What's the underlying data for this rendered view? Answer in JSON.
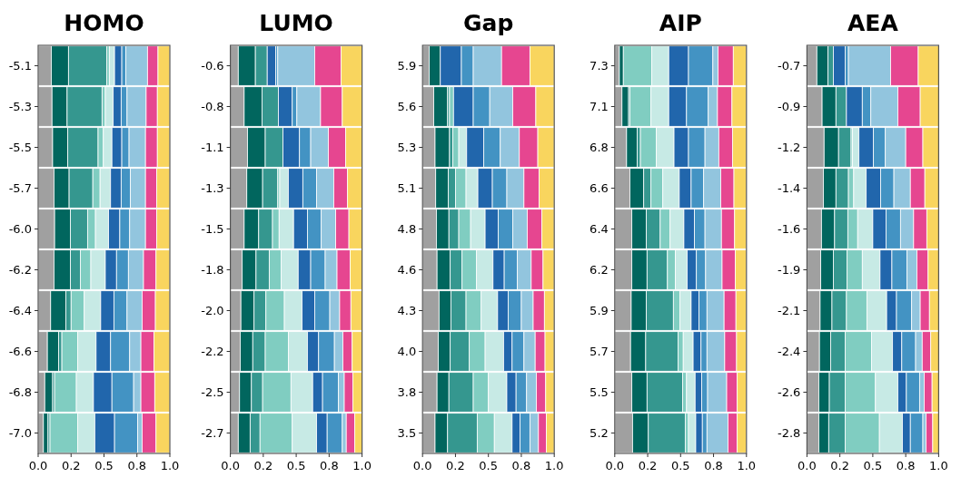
{
  "chart_data": [
    {
      "type": "bar",
      "orientation": "horizontal",
      "stacked": true,
      "title": "HOMO",
      "categories": [
        "-5.1",
        "-5.3",
        "-5.5",
        "-5.7",
        "-6.0",
        "-6.2",
        "-6.4",
        "-6.6",
        "-6.8",
        "-7.0"
      ],
      "xlim": [
        0,
        1
      ],
      "xticks": [
        {
          "value": 0,
          "label": "0.0"
        },
        {
          "value": 0.25,
          "label": "0.2"
        },
        {
          "value": 0.5,
          "label": "0.5"
        },
        {
          "value": 0.75,
          "label": "0.8"
        },
        {
          "value": 1,
          "label": "1.0"
        }
      ],
      "series": [
        {
          "color": "#a0a0a0",
          "values": [
            0.1,
            0.105,
            0.11,
            0.12,
            0.125,
            0.12,
            0.095,
            0.07,
            0.05,
            0.04
          ]
        },
        {
          "color": "#01665e",
          "values": [
            0.13,
            0.115,
            0.115,
            0.115,
            0.12,
            0.125,
            0.115,
            0.085,
            0.06,
            0.035
          ]
        },
        {
          "color": "#35978f",
          "values": [
            0.29,
            0.265,
            0.23,
            0.18,
            0.13,
            0.075,
            0.04,
            0.025,
            0.015,
            0.015
          ]
        },
        {
          "color": "#80cdc1",
          "values": [
            0.02,
            0.025,
            0.04,
            0.055,
            0.06,
            0.08,
            0.1,
            0.12,
            0.165,
            0.21
          ]
        },
        {
          "color": "#c7eae5",
          "values": [
            0.04,
            0.06,
            0.065,
            0.08,
            0.1,
            0.11,
            0.125,
            0.14,
            0.13,
            0.13
          ]
        },
        {
          "color": "#2166ac",
          "values": [
            0.055,
            0.06,
            0.075,
            0.08,
            0.085,
            0.085,
            0.1,
            0.11,
            0.14,
            0.15
          ]
        },
        {
          "color": "#4393c3",
          "values": [
            0.03,
            0.045,
            0.055,
            0.07,
            0.075,
            0.09,
            0.1,
            0.145,
            0.165,
            0.175
          ]
        },
        {
          "color": "#92c5de",
          "values": [
            0.165,
            0.145,
            0.125,
            0.115,
            0.12,
            0.115,
            0.115,
            0.085,
            0.055,
            0.035
          ]
        },
        {
          "color": "#e64690",
          "values": [
            0.08,
            0.085,
            0.09,
            0.085,
            0.085,
            0.095,
            0.1,
            0.1,
            0.105,
            0.105
          ]
        },
        {
          "color": "#f9d55e",
          "values": [
            0.09,
            0.095,
            0.095,
            0.1,
            0.1,
            0.105,
            0.11,
            0.12,
            0.115,
            0.105
          ]
        }
      ]
    },
    {
      "type": "bar",
      "orientation": "horizontal",
      "stacked": true,
      "title": "LUMO",
      "categories": [
        "-0.6",
        "-0.8",
        "-1.1",
        "-1.3",
        "-1.5",
        "-1.8",
        "-2.0",
        "-2.2",
        "-2.5",
        "-2.7"
      ],
      "xlim": [
        0,
        1
      ],
      "xticks": [
        {
          "value": 0,
          "label": "0.0"
        },
        {
          "value": 0.25,
          "label": "0.2"
        },
        {
          "value": 0.5,
          "label": "0.5"
        },
        {
          "value": 0.75,
          "label": "0.8"
        },
        {
          "value": 1,
          "label": "1.0"
        }
      ],
      "series": [
        {
          "color": "#a0a0a0",
          "values": [
            0.06,
            0.105,
            0.13,
            0.125,
            0.105,
            0.09,
            0.08,
            0.075,
            0.07,
            0.06
          ]
        },
        {
          "color": "#01665e",
          "values": [
            0.13,
            0.135,
            0.135,
            0.12,
            0.11,
            0.105,
            0.1,
            0.095,
            0.09,
            0.09
          ]
        },
        {
          "color": "#35978f",
          "values": [
            0.09,
            0.125,
            0.135,
            0.115,
            0.105,
            0.1,
            0.09,
            0.095,
            0.085,
            0.075
          ]
        },
        {
          "color": "#80cdc1",
          "values": [
            0,
            0,
            0,
            0.015,
            0.05,
            0.09,
            0.14,
            0.175,
            0.215,
            0.245
          ]
        },
        {
          "color": "#c7eae5",
          "values": [
            0,
            0,
            0,
            0.065,
            0.11,
            0.13,
            0.135,
            0.145,
            0.165,
            0.185
          ]
        },
        {
          "color": "#2166ac",
          "values": [
            0.065,
            0.105,
            0.125,
            0.11,
            0.105,
            0.095,
            0.095,
            0.085,
            0.075,
            0.08
          ]
        },
        {
          "color": "#4393c3",
          "values": [
            0.015,
            0.035,
            0.085,
            0.105,
            0.105,
            0.11,
            0.115,
            0.12,
            0.12,
            0.115
          ]
        },
        {
          "color": "#92c5de",
          "values": [
            0.28,
            0.18,
            0.135,
            0.13,
            0.11,
            0.09,
            0.075,
            0.065,
            0.045,
            0.03
          ]
        },
        {
          "color": "#e64690",
          "values": [
            0.2,
            0.165,
            0.13,
            0.105,
            0.1,
            0.1,
            0.085,
            0.07,
            0.065,
            0.065
          ]
        },
        {
          "color": "#f9d55e",
          "values": [
            0.16,
            0.15,
            0.125,
            0.11,
            0.1,
            0.09,
            0.085,
            0.075,
            0.07,
            0.055
          ]
        }
      ]
    },
    {
      "type": "bar",
      "orientation": "horizontal",
      "stacked": true,
      "title": "Gap",
      "categories": [
        "5.9",
        "5.6",
        "5.3",
        "5.1",
        "4.8",
        "4.6",
        "4.3",
        "4.0",
        "3.8",
        "3.5"
      ],
      "xlim": [
        0,
        1
      ],
      "xticks": [
        {
          "value": 0,
          "label": "0.0"
        },
        {
          "value": 0.25,
          "label": "0.2"
        },
        {
          "value": 0.5,
          "label": "0.5"
        },
        {
          "value": 0.75,
          "label": "0.8"
        },
        {
          "value": 1,
          "label": "1.0"
        }
      ],
      "series": [
        {
          "color": "#a0a0a0",
          "values": [
            0.05,
            0.085,
            0.095,
            0.1,
            0.105,
            0.11,
            0.125,
            0.12,
            0.11,
            0.095
          ]
        },
        {
          "color": "#01665e",
          "values": [
            0.085,
            0.105,
            0.11,
            0.095,
            0.095,
            0.1,
            0.09,
            0.09,
            0.09,
            0.095
          ]
        },
        {
          "color": "#35978f",
          "values": [
            0,
            0.015,
            0.025,
            0.055,
            0.075,
            0.09,
            0.115,
            0.145,
            0.185,
            0.225
          ]
        },
        {
          "color": "#80cdc1",
          "values": [
            0,
            0.03,
            0.045,
            0.08,
            0.09,
            0.11,
            0.115,
            0.12,
            0.115,
            0.13
          ]
        },
        {
          "color": "#c7eae5",
          "values": [
            0,
            0,
            0.06,
            0.09,
            0.11,
            0.125,
            0.125,
            0.14,
            0.14,
            0.135
          ]
        },
        {
          "color": "#2166ac",
          "values": [
            0.16,
            0.15,
            0.13,
            0.11,
            0.1,
            0.085,
            0.08,
            0.065,
            0.07,
            0.06
          ]
        },
        {
          "color": "#4393c3",
          "values": [
            0.09,
            0.125,
            0.125,
            0.11,
            0.11,
            0.1,
            0.1,
            0.09,
            0.08,
            0.075
          ]
        },
        {
          "color": "#92c5de",
          "values": [
            0.215,
            0.175,
            0.145,
            0.13,
            0.11,
            0.105,
            0.09,
            0.085,
            0.075,
            0.065
          ]
        },
        {
          "color": "#e64690",
          "values": [
            0.215,
            0.175,
            0.14,
            0.115,
            0.11,
            0.09,
            0.085,
            0.075,
            0.07,
            0.06
          ]
        },
        {
          "color": "#f9d55e",
          "values": [
            0.185,
            0.14,
            0.125,
            0.115,
            0.095,
            0.085,
            0.075,
            0.07,
            0.065,
            0.06
          ]
        }
      ]
    },
    {
      "type": "bar",
      "orientation": "horizontal",
      "stacked": true,
      "title": "AIP",
      "categories": [
        "7.3",
        "7.1",
        "6.8",
        "6.6",
        "6.4",
        "6.2",
        "5.9",
        "5.7",
        "5.5",
        "5.2"
      ],
      "xlim": [
        0,
        1
      ],
      "xticks": [
        {
          "value": 0,
          "label": "0.0"
        },
        {
          "value": 0.25,
          "label": "0.2"
        },
        {
          "value": 0.5,
          "label": "0.5"
        },
        {
          "value": 0.75,
          "label": "0.8"
        },
        {
          "value": 1,
          "label": "1.0"
        }
      ],
      "series": [
        {
          "color": "#a0a0a0",
          "values": [
            0.035,
            0.055,
            0.09,
            0.115,
            0.13,
            0.13,
            0.125,
            0.12,
            0.13,
            0.135
          ]
        },
        {
          "color": "#01665e",
          "values": [
            0.03,
            0.05,
            0.08,
            0.105,
            0.11,
            0.115,
            0.115,
            0.115,
            0.115,
            0.12
          ]
        },
        {
          "color": "#35978f",
          "values": [
            0,
            0.01,
            0.025,
            0.055,
            0.105,
            0.155,
            0.205,
            0.245,
            0.27,
            0.28
          ]
        },
        {
          "color": "#80cdc1",
          "values": [
            0.215,
            0.16,
            0.12,
            0.09,
            0.075,
            0.06,
            0.05,
            0.04,
            0.03,
            0.025
          ]
        },
        {
          "color": "#c7eae5",
          "values": [
            0.13,
            0.135,
            0.135,
            0.125,
            0.105,
            0.09,
            0.085,
            0.075,
            0.065,
            0.055
          ]
        },
        {
          "color": "#2166ac",
          "values": [
            0.15,
            0.135,
            0.11,
            0.09,
            0.08,
            0.07,
            0.06,
            0.06,
            0.05,
            0.05
          ]
        },
        {
          "color": "#4393c3",
          "values": [
            0.185,
            0.165,
            0.125,
            0.095,
            0.08,
            0.07,
            0.06,
            0.045,
            0.045,
            0.035
          ]
        },
        {
          "color": "#92c5de",
          "values": [
            0.04,
            0.07,
            0.105,
            0.13,
            0.125,
            0.125,
            0.13,
            0.135,
            0.145,
            0.16
          ]
        },
        {
          "color": "#e64690",
          "values": [
            0.115,
            0.11,
            0.105,
            0.1,
            0.1,
            0.1,
            0.09,
            0.09,
            0.08,
            0.07
          ]
        },
        {
          "color": "#f9d55e",
          "values": [
            0.1,
            0.11,
            0.105,
            0.095,
            0.09,
            0.085,
            0.08,
            0.075,
            0.07,
            0.07
          ]
        }
      ]
    },
    {
      "type": "bar",
      "orientation": "horizontal",
      "stacked": true,
      "title": "AEA",
      "categories": [
        "-0.7",
        "-0.9",
        "-1.2",
        "-1.4",
        "-1.6",
        "-1.9",
        "-2.1",
        "-2.4",
        "-2.6",
        "-2.8"
      ],
      "xlim": [
        0,
        1
      ],
      "xticks": [
        {
          "value": 0,
          "label": "0.0"
        },
        {
          "value": 0.25,
          "label": "0.2"
        },
        {
          "value": 0.5,
          "label": "0.5"
        },
        {
          "value": 0.75,
          "label": "0.8"
        },
        {
          "value": 1,
          "label": "1.0"
        }
      ],
      "series": [
        {
          "color": "#a0a0a0",
          "values": [
            0.075,
            0.115,
            0.13,
            0.125,
            0.11,
            0.105,
            0.1,
            0.095,
            0.09,
            0.09
          ]
        },
        {
          "color": "#01665e",
          "values": [
            0.085,
            0.105,
            0.11,
            0.095,
            0.1,
            0.095,
            0.09,
            0.085,
            0.08,
            0.075
          ]
        },
        {
          "color": "#35978f",
          "values": [
            0.04,
            0.08,
            0.095,
            0.095,
            0.1,
            0.105,
            0.11,
            0.11,
            0.12,
            0.125
          ]
        },
        {
          "color": "#80cdc1",
          "values": [
            0,
            0,
            0.01,
            0.04,
            0.075,
            0.115,
            0.155,
            0.2,
            0.23,
            0.26
          ]
        },
        {
          "color": "#c7eae5",
          "values": [
            0,
            0,
            0.05,
            0.095,
            0.115,
            0.135,
            0.15,
            0.16,
            0.17,
            0.175
          ]
        },
        {
          "color": "#2166ac",
          "values": [
            0.09,
            0.12,
            0.11,
            0.11,
            0.1,
            0.09,
            0.075,
            0.07,
            0.065,
            0.06
          ]
        },
        {
          "color": "#4393c3",
          "values": [
            0.025,
            0.065,
            0.09,
            0.1,
            0.11,
            0.115,
            0.115,
            0.105,
            0.1,
            0.095
          ]
        },
        {
          "color": "#92c5de",
          "values": [
            0.32,
            0.205,
            0.155,
            0.125,
            0.1,
            0.075,
            0.065,
            0.05,
            0.035,
            0.025
          ]
        },
        {
          "color": "#e64690",
          "values": [
            0.21,
            0.17,
            0.13,
            0.11,
            0.1,
            0.085,
            0.07,
            0.065,
            0.06,
            0.05
          ]
        },
        {
          "color": "#f9d55e",
          "values": [
            0.155,
            0.14,
            0.12,
            0.105,
            0.09,
            0.08,
            0.07,
            0.06,
            0.05,
            0.045
          ]
        }
      ]
    }
  ]
}
